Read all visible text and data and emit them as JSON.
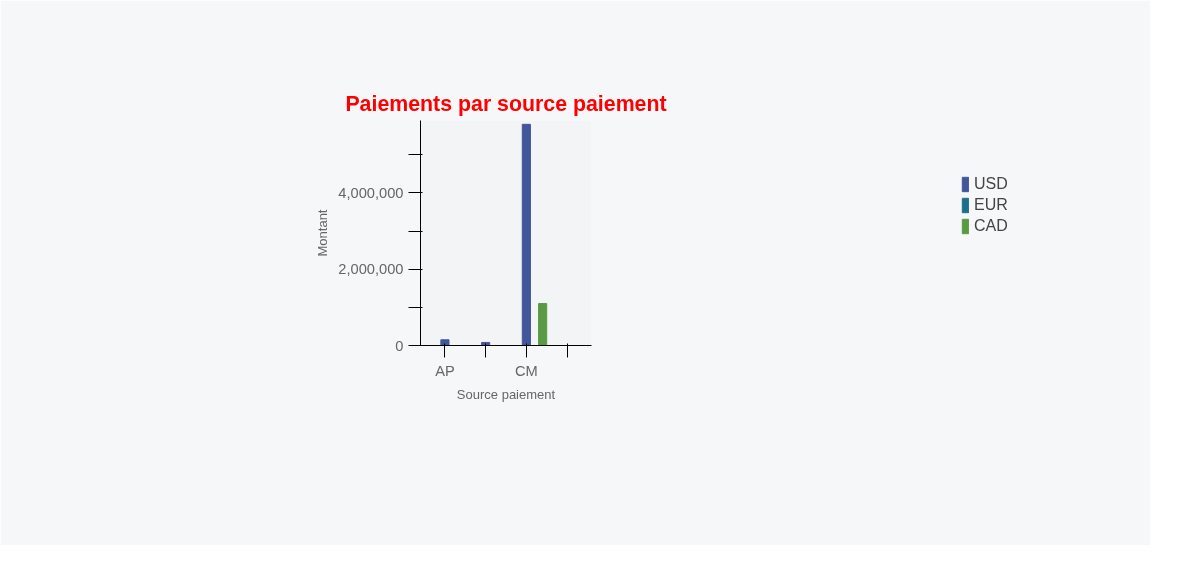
{
  "chart_data": {
    "type": "bar",
    "title": "Paiements par source paiement",
    "xlabel": "Source paiement",
    "ylabel": "Montant",
    "categories": [
      "AP",
      null,
      "CM",
      null
    ],
    "series": [
      {
        "name": "USD",
        "color": "#42569a",
        "values": [
          150000,
          80000,
          5800000,
          null
        ]
      },
      {
        "name": "EUR",
        "color": "#1f6f8b",
        "values": [
          null,
          null,
          null,
          null
        ]
      },
      {
        "name": "CAD",
        "color": "#5a9a45",
        "values": [
          null,
          null,
          1100000,
          null
        ]
      }
    ],
    "ylim": [
      0,
      5900000
    ],
    "yticks": [
      0,
      {
        "value": 1000000,
        "label": null
      },
      {
        "value": 2000000,
        "label": "2,000,000"
      },
      {
        "value": 3000000,
        "label": null
      },
      {
        "value": 4000000,
        "label": "4,000,000"
      },
      {
        "value": 5000000,
        "label": null
      }
    ],
    "grid": false,
    "legend": "top right"
  }
}
